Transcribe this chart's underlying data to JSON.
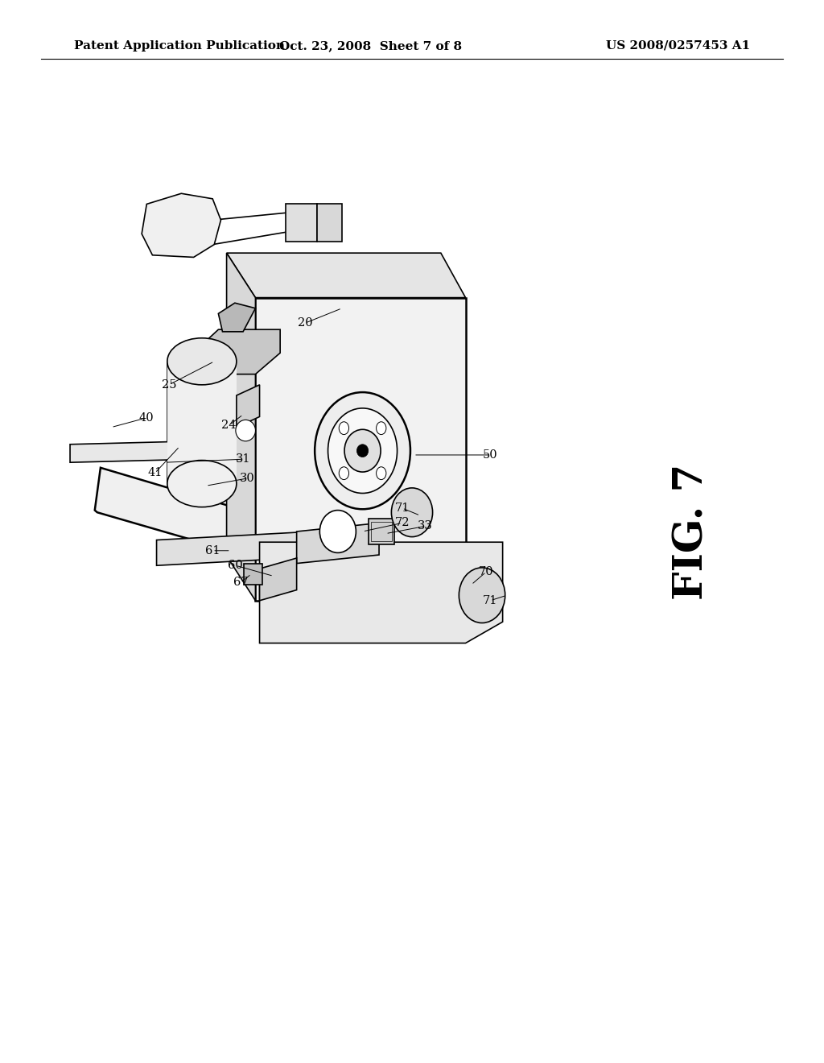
{
  "background_color": "#ffffff",
  "header_left": "Patent Application Publication",
  "header_center": "Oct. 23, 2008  Sheet 7 of 8",
  "header_right": "US 2008/0257453 A1",
  "fig_label": "FIG. 7",
  "header_font_size": 11,
  "fig_label_font_size": 36
}
